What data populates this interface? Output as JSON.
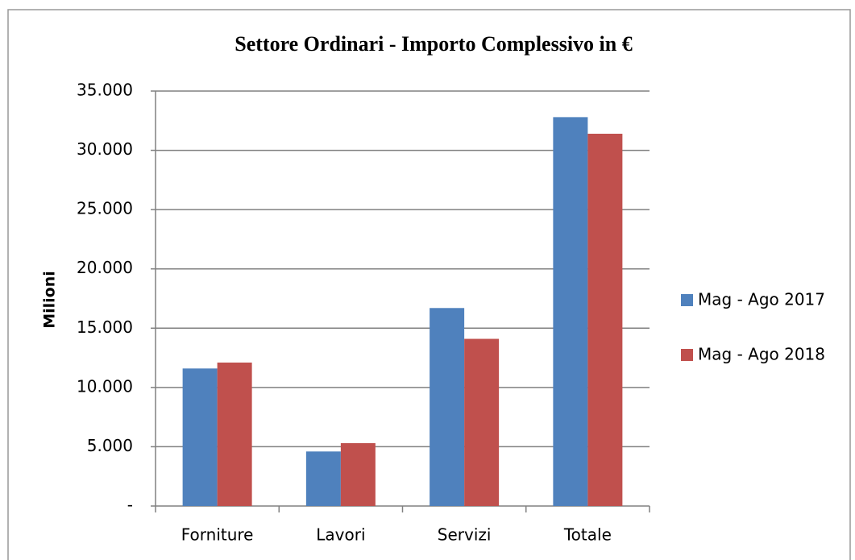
{
  "chart_data": {
    "type": "bar",
    "title": "Settore Ordinari - Importo Complessivo in €",
    "y_label": "Milioni",
    "categories": [
      "Forniture",
      "Lavori",
      "Servizi",
      "Totale"
    ],
    "series": [
      {
        "name": "Mag - Ago 2017",
        "color": "#4f81bd",
        "values": [
          11600,
          4600,
          16700,
          32800
        ]
      },
      {
        "name": "Mag - Ago 2018",
        "color": "#c0504d",
        "values": [
          12100,
          5300,
          14100,
          31400
        ]
      }
    ],
    "ylim": [
      0,
      35000
    ],
    "yticks": [
      {
        "value": 0,
        "label": "-"
      },
      {
        "value": 5000,
        "label": "5.000"
      },
      {
        "value": 10000,
        "label": "10.000"
      },
      {
        "value": 15000,
        "label": "15.000"
      },
      {
        "value": 20000,
        "label": "20.000"
      },
      {
        "value": 25000,
        "label": "25.000"
      },
      {
        "value": 30000,
        "label": "30.000"
      },
      {
        "value": 35000,
        "label": "35.000"
      }
    ],
    "grid": true,
    "legend": "right"
  }
}
